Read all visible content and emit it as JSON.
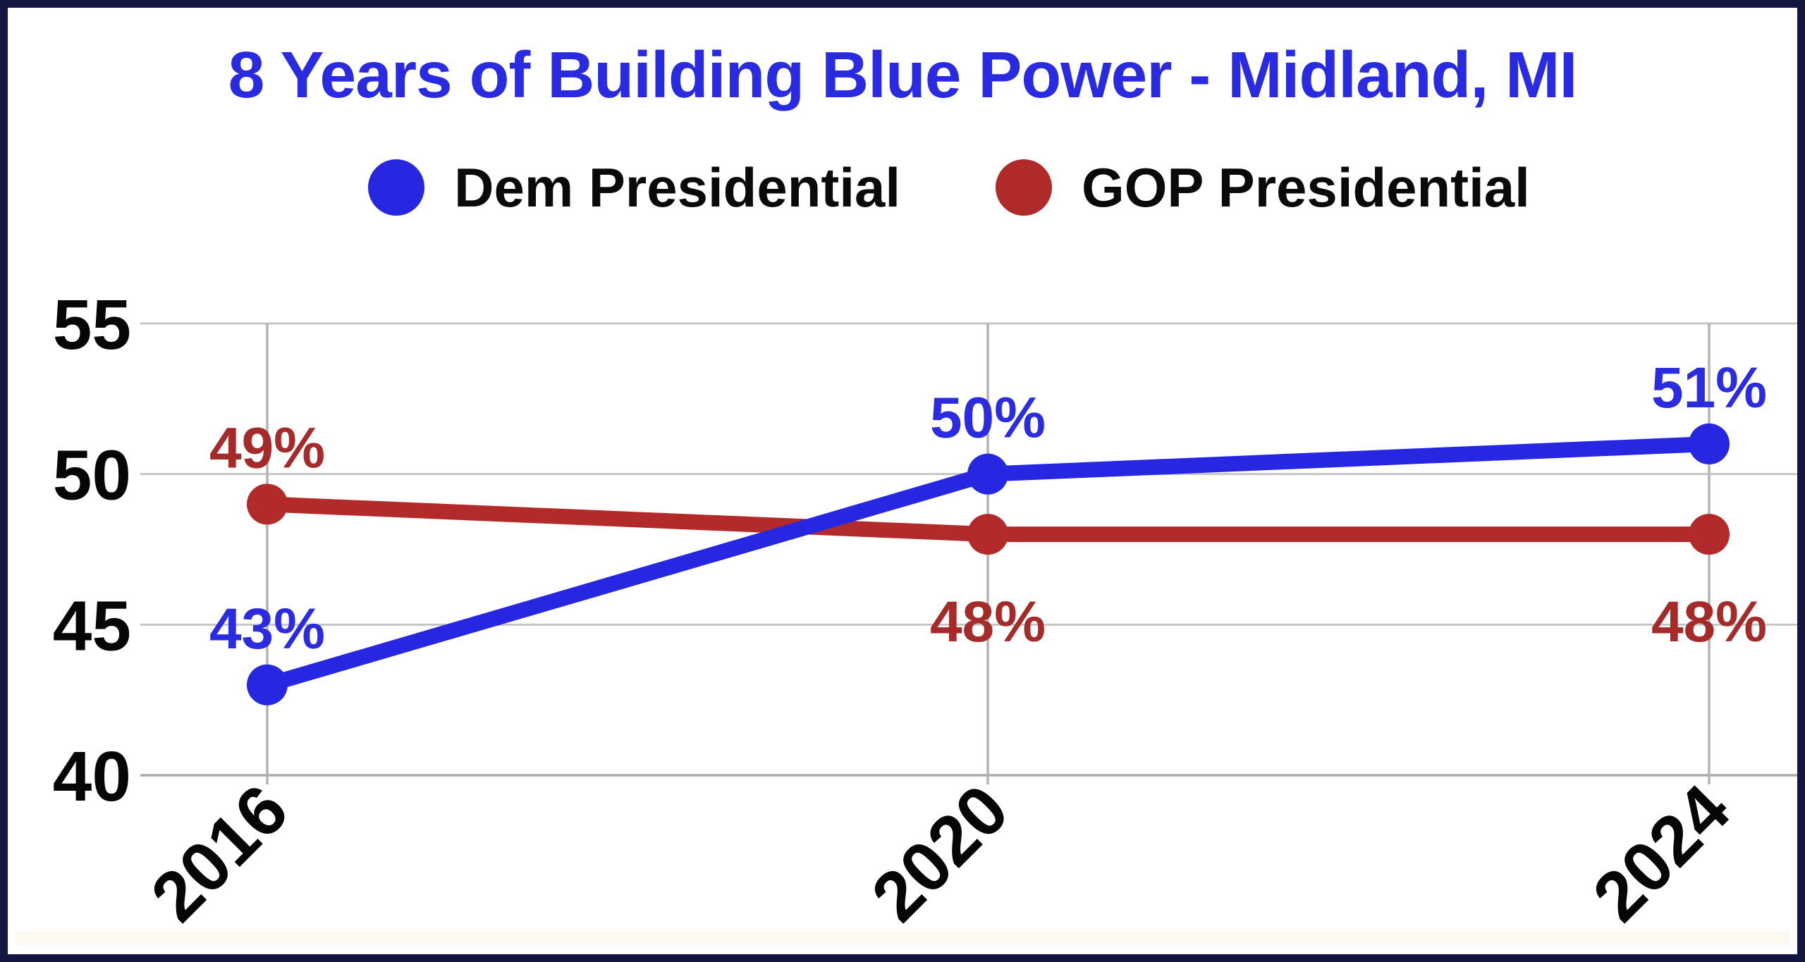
{
  "title": {
    "text": "8 Years of Building Blue Power - Midland, MI",
    "color": "#2A2AE0"
  },
  "legend": {
    "items": [
      {
        "label": "Dem Presidential",
        "color": "#2727E1"
      },
      {
        "label": "GOP Presidential",
        "color": "#B02A2A"
      }
    ]
  },
  "frame": {
    "border_color": "#151542",
    "background": "#ffffff"
  },
  "chart_data": {
    "type": "line",
    "title": "8 Years of Building Blue Power - Midland, MI",
    "x": [
      "2016",
      "2020",
      "2024"
    ],
    "series": [
      {
        "name": "Dem Presidential",
        "color": "#2727E1",
        "label_color": "#2B2BDF",
        "values": [
          43,
          50,
          51
        ],
        "point_labels": [
          "43%",
          "50%",
          "51%"
        ],
        "label_side": [
          "above",
          "above",
          "above"
        ]
      },
      {
        "name": "GOP Presidential",
        "color": "#B22A2A",
        "label_color": "#A52A2A",
        "values": [
          49,
          48,
          48
        ],
        "point_labels": [
          "49%",
          "48%",
          "48%"
        ],
        "label_side": [
          "above",
          "below",
          "below"
        ]
      }
    ],
    "ylim": [
      40,
      55
    ],
    "yticks": [
      40,
      45,
      50,
      55
    ],
    "xlabel": "",
    "ylabel": "",
    "grid": true,
    "x_tick_rotation_deg": -45,
    "legend_position": "top-center",
    "grid_color_horizontal": "#C6C6C6",
    "grid_color_vertical": "#B3B3B3",
    "axis_line_color": "#ABABAB",
    "tick_label_color": "#060606"
  }
}
